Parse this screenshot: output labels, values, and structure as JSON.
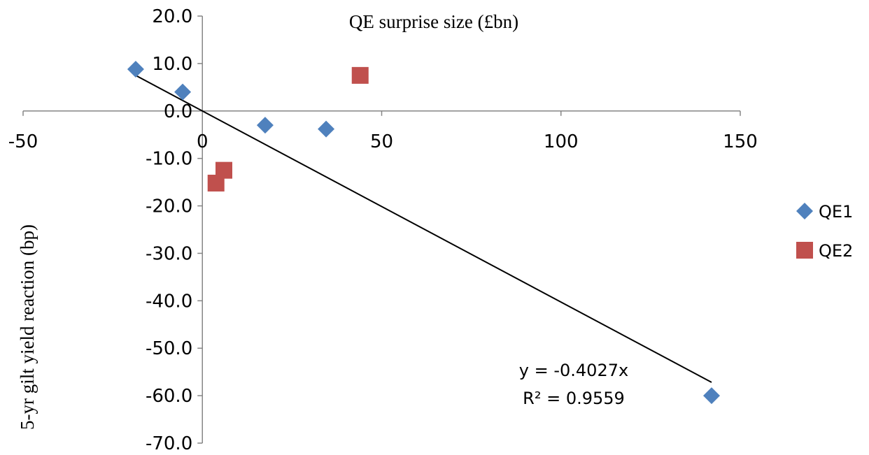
{
  "chart_data": {
    "type": "scatter",
    "title": "",
    "xlabel": "QE surprise size (£bn)",
    "ylabel": "5-yr gilt yield reaction (bp)",
    "xlim": [
      -50,
      150
    ],
    "ylim": [
      -70,
      20
    ],
    "x_ticks": [
      -50,
      0,
      50,
      100,
      150
    ],
    "x_tick_labels": [
      "-50",
      "0",
      "50",
      "100",
      "150"
    ],
    "y_ticks": [
      20,
      10,
      0,
      -10,
      -20,
      -30,
      -40,
      -50,
      -60,
      -70
    ],
    "y_tick_labels": [
      "20.0",
      "10.0",
      "0.0",
      "-10.0",
      "-20.0",
      "-30.0",
      "-40.0",
      "-50.0",
      "-60.0",
      "-70.0"
    ],
    "grid": false,
    "legend_position": "right",
    "series": [
      {
        "name": "QE1",
        "marker": "diamond",
        "color": "#4f81bd",
        "points": [
          {
            "x": -18.6,
            "y": 8.8
          },
          {
            "x": -5.5,
            "y": 4.0
          },
          {
            "x": 17.5,
            "y": -3.0
          },
          {
            "x": 34.5,
            "y": -3.8
          },
          {
            "x": 142,
            "y": -60.0
          }
        ]
      },
      {
        "name": "QE2",
        "marker": "square",
        "color": "#c0504d",
        "points": [
          {
            "x": 44,
            "y": 7.5
          },
          {
            "x": 6,
            "y": -12.5
          },
          {
            "x": 3.8,
            "y": -15.2
          }
        ]
      }
    ],
    "trendline": {
      "slope": -0.4027,
      "intercept": 0,
      "x_range": [
        -18.6,
        142
      ],
      "color": "#000000",
      "equation_label": "y = -0.4027x",
      "r2_label": "R² = 0.9559"
    }
  }
}
